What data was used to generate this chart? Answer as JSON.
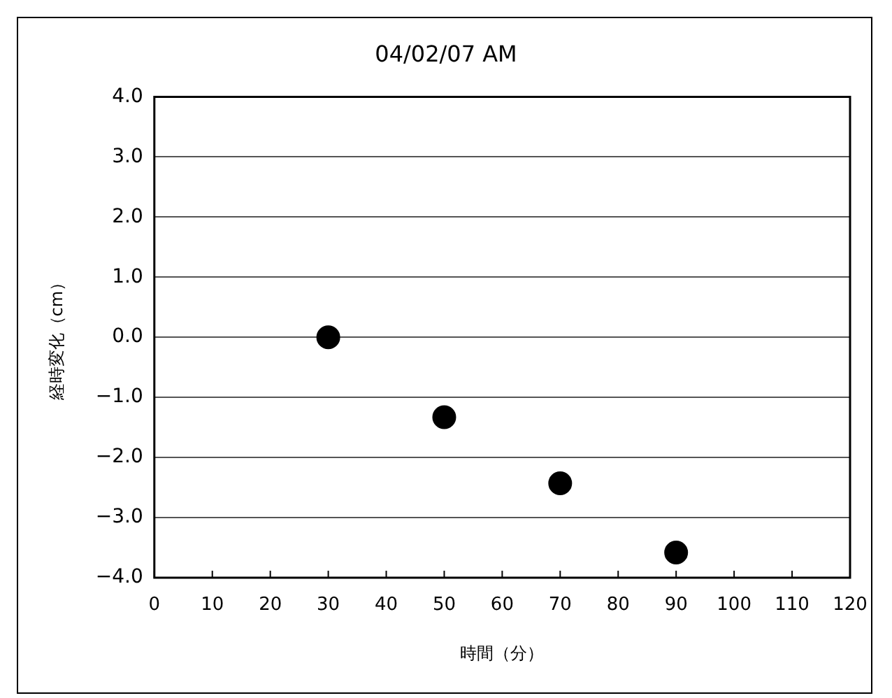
{
  "chart_data": {
    "type": "scatter",
    "title": "04/02/07 AM",
    "xlabel": "時間（分）",
    "ylabel": "経時変化（cm）",
    "x": [
      30,
      50,
      70,
      90
    ],
    "series": [
      {
        "color": "#000000",
        "values": [
          0.0,
          -1.33,
          -2.43,
          -3.58
        ]
      }
    ],
    "xlim": [
      0,
      120
    ],
    "xticks": [
      0,
      10,
      20,
      30,
      40,
      50,
      60,
      70,
      80,
      90,
      100,
      110,
      120
    ],
    "ylim": [
      -4,
      4
    ],
    "yticks": [
      {
        "value": -4,
        "label": "−4.0"
      },
      {
        "value": -3,
        "label": "−3.0"
      },
      {
        "value": -2,
        "label": "−2.0"
      },
      {
        "value": -1,
        "label": "−1.0"
      },
      {
        "value": 0,
        "label": "0.0"
      },
      {
        "value": 1,
        "label": "1.0"
      },
      {
        "value": 2,
        "label": "2.0"
      },
      {
        "value": 3,
        "label": "3.0"
      },
      {
        "value": 4,
        "label": "4.0"
      }
    ],
    "grid": "y",
    "legend": false,
    "marker": "circle"
  }
}
